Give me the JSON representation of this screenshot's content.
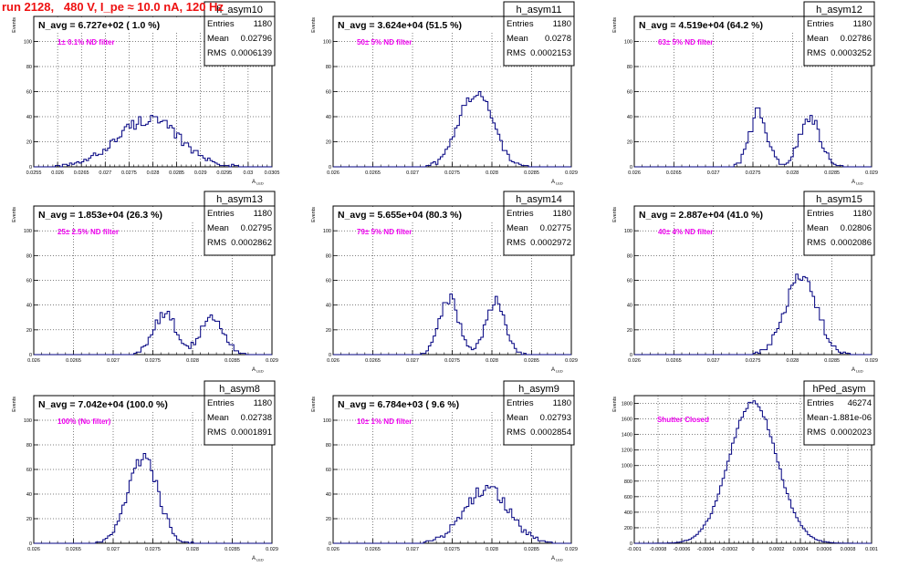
{
  "title": "run 2128,   480 V, I_pe ≈ 10.0 nA, 120 Hz",
  "colors": {
    "title": "#ee1111",
    "histogram": "#000080",
    "annotation": "#ee00ee",
    "grid": "#000000"
  },
  "chart_data": [
    {
      "type": "histogram",
      "name": "h_asym10",
      "summary": "N_avg = 6.727e+02 ( 1.0 %)",
      "annotation": "1± 0.1% ND filter",
      "stats": [
        {
          "label": "Entries",
          "value": "1180"
        },
        {
          "label": "Mean",
          "value": "0.02796"
        },
        {
          "label": "RMS",
          "value": "0.0006139"
        }
      ],
      "ylabel": "Events",
      "xlabel": "A_{LED}",
      "xlim": [
        0.0255,
        0.0305
      ],
      "ylim": [
        0,
        120
      ],
      "xticks": [
        0.0255,
        0.026,
        0.0265,
        0.027,
        0.0275,
        0.028,
        0.0285,
        0.029,
        0.0295,
        0.03,
        0.0305
      ],
      "xtick_labels": [
        "0.0255",
        "0.026",
        "0.0265",
        "0.027",
        "0.0275",
        "0.028",
        "0.0285",
        "0.029",
        "0.0295",
        "0.03",
        "0.0305"
      ],
      "yticks": [
        0,
        20,
        40,
        60,
        80,
        100
      ],
      "ytick_labels": [
        "0",
        "20",
        "40",
        "60",
        "80",
        "100"
      ],
      "peaks": [
        {
          "center": 0.0279,
          "sigma": 0.00065,
          "height": 38
        }
      ],
      "show_grid": true
    },
    {
      "type": "histogram",
      "name": "h_asym11",
      "summary": "N_avg = 3.624e+04 (51.5 %)",
      "annotation": "50± 5% ND filter",
      "stats": [
        {
          "label": "Entries",
          "value": "1180"
        },
        {
          "label": "Mean",
          "value": "0.0278"
        },
        {
          "label": "RMS",
          "value": "0.0002153"
        }
      ],
      "ylabel": "Events",
      "xlabel": "A_{LED}",
      "xlim": [
        0.026,
        0.029
      ],
      "ylim": [
        0,
        120
      ],
      "xticks": [
        0.026,
        0.0265,
        0.027,
        0.0275,
        0.028,
        0.0285,
        0.029
      ],
      "xtick_labels": [
        "0.026",
        "0.0265",
        "0.027",
        "0.0275",
        "0.028",
        "0.0285",
        "0.029"
      ],
      "yticks": [
        0,
        20,
        40,
        60,
        80,
        100
      ],
      "ytick_labels": [
        "0",
        "20",
        "40",
        "60",
        "80",
        "100"
      ],
      "peaks": [
        {
          "center": 0.0278,
          "sigma": 0.00021,
          "height": 60
        }
      ],
      "show_grid": true
    },
    {
      "type": "histogram",
      "name": "h_asym12",
      "summary": "N_avg = 4.519e+04 (64.2 %)",
      "annotation": "63± 5% ND filter",
      "stats": [
        {
          "label": "Entries",
          "value": "1180"
        },
        {
          "label": "Mean",
          "value": "0.02786"
        },
        {
          "label": "RMS",
          "value": "0.0003252"
        }
      ],
      "ylabel": "Events",
      "xlabel": "A_{LED}",
      "xlim": [
        0.026,
        0.029
      ],
      "ylim": [
        0,
        120
      ],
      "xticks": [
        0.026,
        0.0265,
        0.027,
        0.0275,
        0.028,
        0.0285,
        0.029
      ],
      "xtick_labels": [
        "0.026",
        "0.0265",
        "0.027",
        "0.0275",
        "0.028",
        "0.0285",
        "0.029"
      ],
      "yticks": [
        0,
        20,
        40,
        60,
        80,
        100
      ],
      "ytick_labels": [
        "0",
        "20",
        "40",
        "60",
        "80",
        "100"
      ],
      "peaks": [
        {
          "center": 0.02757,
          "sigma": 0.00011,
          "height": 44
        },
        {
          "center": 0.02822,
          "sigma": 0.00013,
          "height": 40
        }
      ],
      "show_grid": true
    },
    {
      "type": "histogram",
      "name": "h_asym13",
      "summary": "N_avg = 1.853e+04 (26.3 %)",
      "annotation": "25± 2.5% ND filter",
      "stats": [
        {
          "label": "Entries",
          "value": "1180"
        },
        {
          "label": "Mean",
          "value": "0.02795"
        },
        {
          "label": "RMS",
          "value": "0.0002862"
        }
      ],
      "ylabel": "Events",
      "xlabel": "A_{LED}",
      "xlim": [
        0.026,
        0.029
      ],
      "ylim": [
        0,
        120
      ],
      "xticks": [
        0.026,
        0.0265,
        0.027,
        0.0275,
        0.028,
        0.0285,
        0.029
      ],
      "xtick_labels": [
        "0.026",
        "0.0265",
        "0.027",
        "0.0275",
        "0.028",
        "0.0285",
        "0.029"
      ],
      "yticks": [
        0,
        20,
        40,
        60,
        80,
        100
      ],
      "ytick_labels": [
        "0",
        "20",
        "40",
        "60",
        "80",
        "100"
      ],
      "peaks": [
        {
          "center": 0.02765,
          "sigma": 0.00014,
          "height": 34
        },
        {
          "center": 0.02825,
          "sigma": 0.00014,
          "height": 32
        }
      ],
      "show_grid": true
    },
    {
      "type": "histogram",
      "name": "h_asym14",
      "summary": "N_avg = 5.655e+04 (80.3 %)",
      "annotation": "79± 5% ND filter",
      "stats": [
        {
          "label": "Entries",
          "value": "1180"
        },
        {
          "label": "Mean",
          "value": "0.02775"
        },
        {
          "label": "RMS",
          "value": "0.0002972"
        }
      ],
      "ylabel": "Events",
      "xlabel": "A_{LED}",
      "xlim": [
        0.026,
        0.029
      ],
      "ylim": [
        0,
        120
      ],
      "xticks": [
        0.026,
        0.0265,
        0.027,
        0.0275,
        0.028,
        0.0285,
        0.029
      ],
      "xtick_labels": [
        "0.026",
        "0.0265",
        "0.027",
        "0.0275",
        "0.028",
        "0.0285",
        "0.029"
      ],
      "yticks": [
        0,
        20,
        40,
        60,
        80,
        100
      ],
      "ytick_labels": [
        "0",
        "20",
        "40",
        "60",
        "80",
        "100"
      ],
      "peaks": [
        {
          "center": 0.02746,
          "sigma": 0.00012,
          "height": 46
        },
        {
          "center": 0.02805,
          "sigma": 0.00012,
          "height": 44
        }
      ],
      "show_grid": true
    },
    {
      "type": "histogram",
      "name": "h_asym15",
      "summary": "N_avg = 2.887e+04 (41.0 %)",
      "annotation": "40± 4% ND filter",
      "stats": [
        {
          "label": "Entries",
          "value": "1180"
        },
        {
          "label": "Mean",
          "value": "0.02806"
        },
        {
          "label": "RMS",
          "value": "0.0002086"
        }
      ],
      "ylabel": "Events",
      "xlabel": "A_{LED}",
      "xlim": [
        0.026,
        0.029
      ],
      "ylim": [
        0,
        120
      ],
      "xticks": [
        0.026,
        0.0265,
        0.027,
        0.0275,
        0.028,
        0.0285,
        0.029
      ],
      "xtick_labels": [
        "0.026",
        "0.0265",
        "0.027",
        "0.0275",
        "0.028",
        "0.0285",
        "0.029"
      ],
      "yticks": [
        0,
        20,
        40,
        60,
        80,
        100
      ],
      "ytick_labels": [
        "0",
        "20",
        "40",
        "60",
        "80",
        "100"
      ],
      "peaks": [
        {
          "center": 0.02811,
          "sigma": 0.0002,
          "height": 62
        }
      ],
      "show_grid": true
    },
    {
      "type": "histogram",
      "name": "h_asym8",
      "summary": "N_avg = 7.042e+04 (100.0 %)",
      "annotation": "100% (No filter)",
      "stats": [
        {
          "label": "Entries",
          "value": "1180"
        },
        {
          "label": "Mean",
          "value": "0.02738"
        },
        {
          "label": "RMS",
          "value": "0.0001891"
        }
      ],
      "ylabel": "Events",
      "xlabel": "A_{LED}",
      "xlim": [
        0.026,
        0.029
      ],
      "ylim": [
        0,
        120
      ],
      "xticks": [
        0.026,
        0.0265,
        0.027,
        0.0275,
        0.028,
        0.0285,
        0.029
      ],
      "xtick_labels": [
        "0.026",
        "0.0265",
        "0.027",
        "0.0275",
        "0.028",
        "0.0285",
        "0.029"
      ],
      "yticks": [
        0,
        20,
        40,
        60,
        80,
        100
      ],
      "ytick_labels": [
        "0",
        "20",
        "40",
        "60",
        "80",
        "100"
      ],
      "peaks": [
        {
          "center": 0.02738,
          "sigma": 0.00019,
          "height": 68
        }
      ],
      "show_grid": true
    },
    {
      "type": "histogram",
      "name": "h_asym9",
      "summary": "N_avg = 6.784e+03 ( 9.6 %)",
      "annotation": "10± 1% ND filter",
      "stats": [
        {
          "label": "Entries",
          "value": "1180"
        },
        {
          "label": "Mean",
          "value": "0.02793"
        },
        {
          "label": "RMS",
          "value": "0.0002854"
        }
      ],
      "ylabel": "Events",
      "xlabel": "A_{LED}",
      "xlim": [
        0.026,
        0.029
      ],
      "ylim": [
        0,
        120
      ],
      "xticks": [
        0.026,
        0.0265,
        0.027,
        0.0275,
        0.028,
        0.0285,
        0.029
      ],
      "xtick_labels": [
        "0.026",
        "0.0265",
        "0.027",
        "0.0275",
        "0.028",
        "0.0285",
        "0.029"
      ],
      "yticks": [
        0,
        20,
        40,
        60,
        80,
        100
      ],
      "ytick_labels": [
        "0",
        "20",
        "40",
        "60",
        "80",
        "100"
      ],
      "peaks": [
        {
          "center": 0.02793,
          "sigma": 0.00028,
          "height": 44
        }
      ],
      "show_grid": true
    },
    {
      "type": "histogram",
      "name": "hPed_asym",
      "summary": "",
      "annotation": "Shutter Closed",
      "stats": [
        {
          "label": "Entries",
          "value": "46274"
        },
        {
          "label": "Mean",
          "value": "-1.881e-06"
        },
        {
          "label": "RMS",
          "value": "0.0002023"
        }
      ],
      "ylabel": "Events",
      "xlabel": "",
      "xlim": [
        -0.001,
        0.001
      ],
      "ylim": [
        0,
        1900
      ],
      "xticks": [
        -0.001,
        -0.0008,
        -0.0006,
        -0.0004,
        -0.0002,
        0,
        0.0002,
        0.0004,
        0.0006,
        0.0008,
        0.001
      ],
      "xtick_labels": [
        "-0.001",
        "-0.0008",
        "-0.0006",
        "-0.0004",
        "-0.0002",
        "0",
        "0.0002",
        "0.0004",
        "0.0006",
        "0.0008",
        "0.001"
      ],
      "yticks": [
        0,
        200,
        400,
        600,
        800,
        1000,
        1200,
        1400,
        1600,
        1800
      ],
      "ytick_labels": [
        "0",
        "200",
        "400",
        "600",
        "800",
        "1000",
        "1200",
        "1400",
        "1600",
        "1800"
      ],
      "peaks": [
        {
          "center": 0.0,
          "sigma": 0.0002,
          "height": 1820
        }
      ],
      "show_grid": true
    }
  ]
}
